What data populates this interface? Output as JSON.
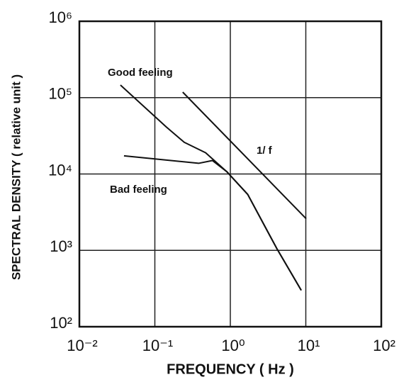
{
  "chart_data": {
    "type": "line",
    "xlabel": "FREQUENCY ( Hz )",
    "ylabel": "SPECTRAL DENSITY ( relative unit )",
    "xscale": "log",
    "yscale": "log",
    "grid": true,
    "xlim": [
      0.01,
      100
    ],
    "ylim": [
      100,
      1000000
    ],
    "xticks": [
      {
        "value": 0.01,
        "label": "10⁻²"
      },
      {
        "value": 0.1,
        "label": "10⁻¹"
      },
      {
        "value": 1,
        "label": "10⁰"
      },
      {
        "value": 10,
        "label": "10¹"
      },
      {
        "value": 100,
        "label": "10²"
      }
    ],
    "yticks": [
      {
        "value": 100,
        "label": "10²"
      },
      {
        "value": 1000,
        "label": "10³"
      },
      {
        "value": 10000,
        "label": "10⁴"
      },
      {
        "value": 100000,
        "label": "10⁵"
      },
      {
        "value": 1000000,
        "label": "10⁶"
      }
    ],
    "series": [
      {
        "name": "Good feeling",
        "color": "#111111",
        "x": [
          0.035,
          0.143,
          0.245,
          0.47,
          0.9,
          1.7,
          4.1,
          8.7
        ],
        "values": [
          146000,
          41000,
          26000,
          19000,
          10700,
          5400,
          1070,
          300
        ]
      },
      {
        "name": "Bad feeling",
        "color": "#111111",
        "x": [
          0.039,
          0.38,
          0.58,
          0.9,
          1.7,
          4.1,
          8.7
        ],
        "values": [
          17300,
          13800,
          15000,
          10700,
          5400,
          1070,
          300
        ]
      },
      {
        "name": "1/ f",
        "color": "#111111",
        "x": [
          0.234,
          10.1
        ],
        "values": [
          118000,
          2600
        ]
      }
    ]
  }
}
